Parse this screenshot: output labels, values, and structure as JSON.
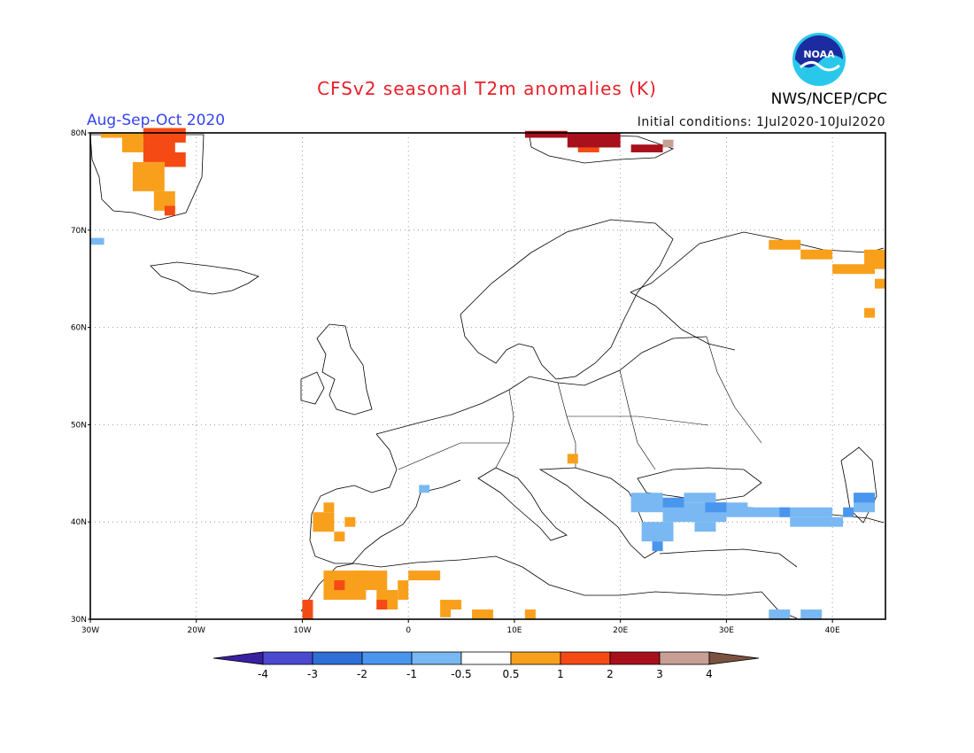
{
  "header": {
    "title": "CFSv2 seasonal T2m anomalies (K)",
    "agency": "NWS/NCEP/CPC",
    "season": "Aug-Sep-Oct 2020",
    "init_conditions": "Initial conditions: 1Jul2020-10Jul2020",
    "logo_text": "NOAA"
  },
  "map": {
    "lat_labels": [
      "80N",
      "70N",
      "60N",
      "50N",
      "40N",
      "30N"
    ],
    "lon_labels": [
      "30W",
      "20W",
      "10W",
      "0",
      "10E",
      "20E",
      "30E",
      "40E"
    ],
    "lon_range": [
      -30,
      45
    ],
    "lat_range": [
      30,
      80
    ]
  },
  "colorbar": {
    "labels": [
      "-4",
      "-3",
      "-2",
      "-1",
      "-0.5",
      "0.5",
      "1",
      "2",
      "3",
      "4"
    ],
    "colors": [
      "#3a1fa0",
      "#4a49d0",
      "#2f6fd6",
      "#4a95ee",
      "#79b8f2",
      "#ffffff",
      "#f8a01c",
      "#f54a14",
      "#a8101c",
      "#c79f95",
      "#7b5240"
    ]
  }
}
